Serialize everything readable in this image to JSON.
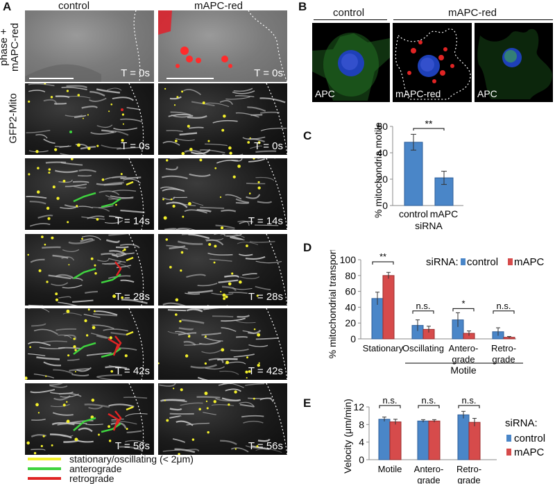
{
  "panelA": {
    "letter": "A",
    "col_headers": [
      "control",
      "mAPC-red"
    ],
    "row_label_phase": "phase + mAPC-red",
    "row_label_phase_l1": "phase +",
    "row_label_phase_l2": "mAPC-red",
    "row_label_gfp": "GFP2-Mito",
    "timestamps": [
      "T = 0s",
      "T = 0s",
      "T = 14s",
      "T = 28s",
      "T = 42s",
      "T = 56s"
    ],
    "legend": [
      {
        "label": "stationary/oscillating (< 2μm)",
        "color": "#f2ef2c"
      },
      {
        "label": "anterograde",
        "color": "#3fd33f"
      },
      {
        "label": "retrograde",
        "color": "#e02424"
      }
    ]
  },
  "panelB": {
    "letter": "B",
    "header_control": "control",
    "header_mapc": "mAPC-red",
    "captions": [
      "APC",
      "mAPC-red",
      "APC"
    ]
  },
  "panelC": {
    "letter": "C",
    "sig": "**"
  },
  "panelD": {
    "letter": "D",
    "sigs": [
      "**",
      "n.s.",
      "*",
      "n.s."
    ],
    "legend_title": "siRNA:",
    "group_label": "Motile"
  },
  "panelE": {
    "letter": "E",
    "sigs": [
      "n.s.",
      "n.s.",
      "n.s."
    ],
    "legend_title": "siRNA:"
  },
  "colors": {
    "control": "#4a86c8",
    "mapc": "#d64b4b",
    "yellow": "#f2ef2c",
    "green": "#3fd33f",
    "red": "#e02424"
  },
  "chart_data": [
    {
      "id": "C",
      "type": "bar",
      "categories": [
        "control",
        "mAPC"
      ],
      "values": [
        48,
        21
      ],
      "errors": [
        6,
        5
      ],
      "xlabel": "siRNA",
      "ylabel": "% mitochondria motile",
      "ylim": [
        0,
        60
      ],
      "yticks": [
        0,
        20,
        40,
        60
      ]
    },
    {
      "id": "D",
      "type": "bar",
      "categories": [
        "Stationary",
        "Oscillating",
        "Antero- grade",
        "Retro- grade"
      ],
      "category_lines": [
        [
          "Stationary"
        ],
        [
          "Oscillating"
        ],
        [
          "Antero-",
          "grade"
        ],
        [
          "Retro-",
          "grade"
        ]
      ],
      "series": [
        {
          "name": "control",
          "values": [
            51,
            17,
            24,
            9
          ],
          "errors": [
            8,
            7,
            9,
            5
          ]
        },
        {
          "name": "mAPC",
          "values": [
            80,
            12,
            7,
            2
          ],
          "errors": [
            4,
            4,
            3,
            1
          ]
        }
      ],
      "ylabel": "% mitochondrial transport",
      "ylim": [
        0,
        100
      ],
      "yticks": [
        0,
        20,
        40,
        60,
        80,
        100
      ],
      "legend": "top-right"
    },
    {
      "id": "E",
      "type": "bar",
      "categories": [
        "Motile",
        "Antero- grade",
        "Retro- grade"
      ],
      "category_lines": [
        [
          "Motile"
        ],
        [
          "Antero-",
          "grade"
        ],
        [
          "Retro-",
          "grade"
        ]
      ],
      "series": [
        {
          "name": "control",
          "values": [
            9.2,
            8.8,
            10.2
          ],
          "errors": [
            0.5,
            0.3,
            0.8
          ]
        },
        {
          "name": "mAPC",
          "values": [
            8.6,
            8.8,
            8.5
          ],
          "errors": [
            0.6,
            0.3,
            0.9
          ]
        }
      ],
      "ylabel": "Velocity (μm/min)",
      "ylim": [
        0,
        12
      ],
      "yticks": [
        0,
        4,
        8,
        12
      ],
      "legend": "right"
    }
  ]
}
